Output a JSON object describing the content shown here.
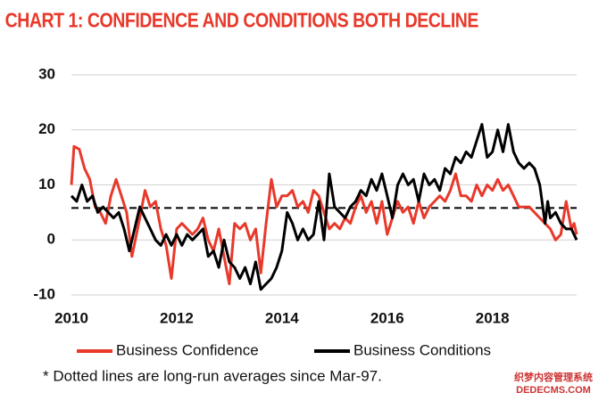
{
  "chart_data": {
    "type": "line",
    "title": "CHART 1: CONFIDENCE AND CONDITIONS BOTH DECLINE",
    "footnote": "* Dotted lines are long-run averages since Mar-97.",
    "watermark": [
      "织梦内容管理系统",
      "DEDECMS.COM"
    ],
    "xlim": [
      2010,
      2019.6
    ],
    "xticks": [
      2010,
      2012,
      2014,
      2016,
      2018
    ],
    "ylim": [
      -10,
      30
    ],
    "yticks": [
      -10,
      0,
      10,
      20,
      30
    ],
    "grid": true,
    "average_lines": [
      5.8
    ],
    "series": [
      {
        "name": "Business Confidence",
        "color": "#e8392b",
        "x": [
          2010.0,
          2010.05,
          2010.15,
          2010.25,
          2010.35,
          2010.45,
          2010.55,
          2010.65,
          2010.75,
          2010.85,
          2010.95,
          2011.05,
          2011.15,
          2011.3,
          2011.4,
          2011.5,
          2011.6,
          2011.7,
          2011.8,
          2011.9,
          2012.0,
          2012.1,
          2012.2,
          2012.3,
          2012.4,
          2012.5,
          2012.6,
          2012.7,
          2012.8,
          2012.9,
          2013.0,
          2013.1,
          2013.2,
          2013.3,
          2013.4,
          2013.5,
          2013.6,
          2013.7,
          2013.8,
          2013.9,
          2014.0,
          2014.1,
          2014.2,
          2014.3,
          2014.4,
          2014.5,
          2014.6,
          2014.7,
          2014.8,
          2014.9,
          2015.0,
          2015.1,
          2015.2,
          2015.3,
          2015.4,
          2015.5,
          2015.6,
          2015.7,
          2015.8,
          2015.9,
          2016.0,
          2016.1,
          2016.2,
          2016.3,
          2016.4,
          2016.5,
          2016.6,
          2016.7,
          2016.8,
          2016.9,
          2017.0,
          2017.1,
          2017.2,
          2017.3,
          2017.4,
          2017.5,
          2017.6,
          2017.7,
          2017.8,
          2017.9,
          2018.0,
          2018.1,
          2018.2,
          2018.3,
          2018.4,
          2018.5,
          2018.6,
          2018.7,
          2018.8,
          2018.9,
          2019.0,
          2019.1,
          2019.2,
          2019.3,
          2019.4,
          2019.5,
          2019.55,
          2019.6
        ],
        "values": [
          10,
          17,
          16.5,
          13,
          11,
          6,
          5,
          3,
          8,
          11,
          8,
          5,
          -3,
          4,
          9,
          6,
          7,
          2,
          -1,
          -7,
          2,
          3,
          2,
          1,
          2,
          4,
          0,
          -2,
          2,
          -3,
          -8,
          3,
          2,
          3,
          0,
          2,
          -6,
          3,
          11,
          6,
          8,
          8,
          9,
          6,
          7,
          5,
          9,
          8,
          5,
          2,
          3,
          2,
          4,
          3,
          6,
          8,
          5,
          7,
          3,
          7,
          1,
          4,
          7,
          5,
          6,
          3,
          7,
          4,
          6,
          7,
          8,
          7,
          9,
          12,
          8,
          8,
          7,
          10,
          8,
          10,
          9,
          11,
          9,
          10,
          8,
          6,
          6,
          6,
          5,
          4,
          3,
          2,
          0,
          1,
          7,
          2,
          3,
          1
        ]
      },
      {
        "name": "Business Conditions",
        "color": "#000000",
        "x": [
          2010.0,
          2010.1,
          2010.2,
          2010.3,
          2010.4,
          2010.5,
          2010.6,
          2010.7,
          2010.8,
          2010.9,
          2011.0,
          2011.1,
          2011.2,
          2011.3,
          2011.4,
          2011.5,
          2011.6,
          2011.7,
          2011.8,
          2011.9,
          2012.0,
          2012.1,
          2012.2,
          2012.3,
          2012.4,
          2012.5,
          2012.6,
          2012.7,
          2012.8,
          2012.9,
          2013.0,
          2013.1,
          2013.2,
          2013.3,
          2013.4,
          2013.5,
          2013.6,
          2013.7,
          2013.8,
          2013.9,
          2014.0,
          2014.1,
          2014.2,
          2014.3,
          2014.4,
          2014.5,
          2014.6,
          2014.7,
          2014.8,
          2014.9,
          2015.0,
          2015.1,
          2015.2,
          2015.3,
          2015.4,
          2015.5,
          2015.6,
          2015.7,
          2015.8,
          2015.9,
          2016.0,
          2016.1,
          2016.2,
          2016.3,
          2016.4,
          2016.5,
          2016.6,
          2016.7,
          2016.8,
          2016.9,
          2017.0,
          2017.1,
          2017.2,
          2017.3,
          2017.4,
          2017.5,
          2017.6,
          2017.7,
          2017.8,
          2017.9,
          2018.0,
          2018.1,
          2018.2,
          2018.3,
          2018.4,
          2018.5,
          2018.6,
          2018.7,
          2018.8,
          2018.9,
          2019.0,
          2019.05,
          2019.1,
          2019.2,
          2019.3,
          2019.4,
          2019.5,
          2019.6
        ],
        "values": [
          8,
          7,
          10,
          7,
          8,
          5,
          6,
          5,
          4,
          5,
          2,
          -2,
          2,
          6,
          4,
          2,
          0,
          -1,
          1,
          -1,
          1,
          -1,
          1,
          0,
          1,
          2,
          -3,
          -2,
          -5,
          0,
          -4,
          -5,
          -7,
          -5,
          -8,
          -4,
          -9,
          -8,
          -7,
          -5,
          -2,
          5,
          3,
          0,
          2,
          0,
          1,
          7,
          0,
          12,
          6,
          5,
          4,
          6,
          7,
          9,
          8,
          11,
          9,
          12,
          8,
          4,
          10,
          12,
          10,
          11,
          7,
          12,
          10,
          11,
          9,
          13,
          12,
          15,
          14,
          16,
          15,
          18,
          21,
          15,
          16,
          20,
          16,
          21,
          16,
          14,
          13,
          14,
          13,
          10,
          3,
          7,
          4,
          5,
          3,
          2,
          2,
          0
        ]
      }
    ]
  }
}
